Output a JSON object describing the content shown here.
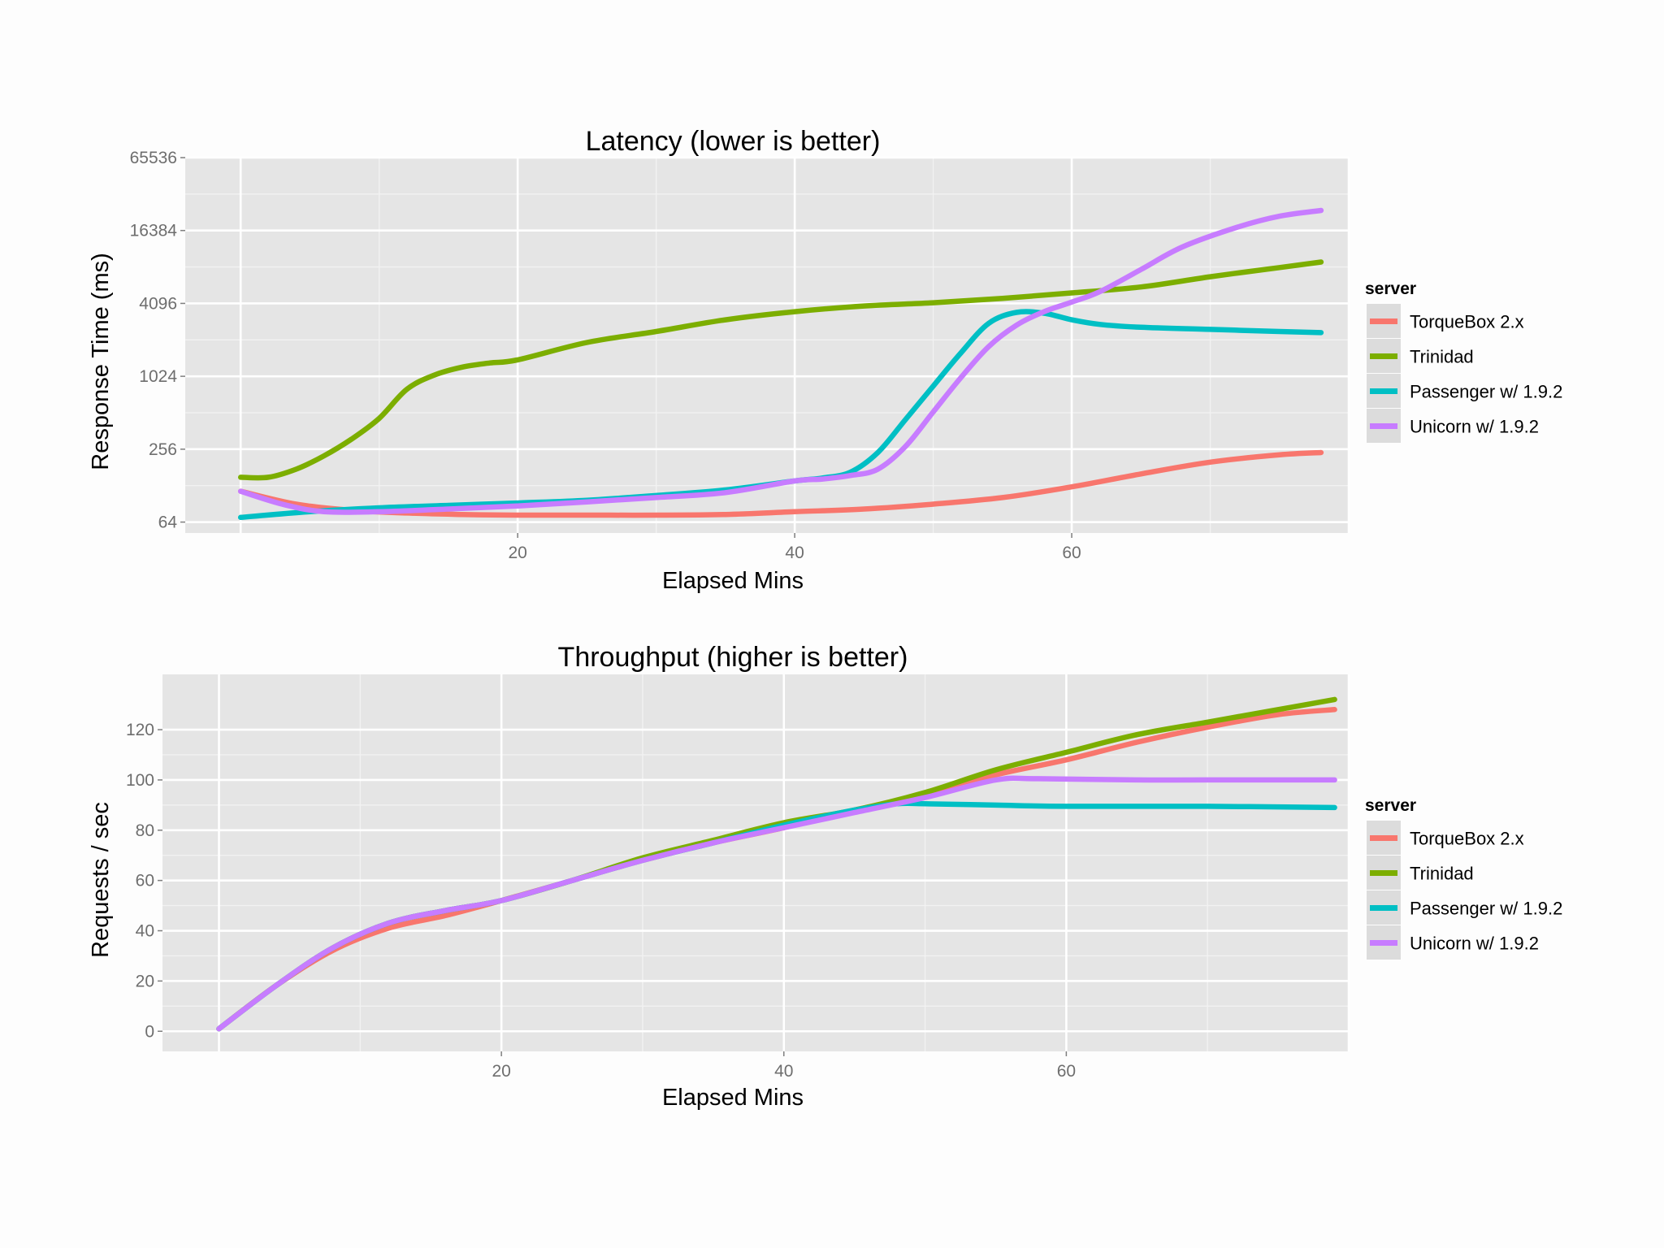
{
  "page": {
    "background": "#fdfdfd",
    "panel_background": "#e5e5e5",
    "grid_color": "#ffffff"
  },
  "chart_data": [
    {
      "type": "line",
      "title": "Latency (lower is better)",
      "xlabel": "Elapsed Mins",
      "ylabel": "Response Time (ms)",
      "y_scale": "log2",
      "xlim": [
        -4,
        80
      ],
      "ylim": [
        52,
        65536
      ],
      "x_ticks": [
        20,
        40,
        60
      ],
      "y_ticks": [
        64,
        256,
        1024,
        4096,
        16384,
        65536
      ],
      "grid": true,
      "legend": {
        "title": "server",
        "position": "right"
      },
      "series": [
        {
          "name": "TorqueBox 2.x",
          "color": "#f8766d",
          "x": [
            0,
            4,
            8,
            12,
            16,
            20,
            25,
            30,
            35,
            40,
            45,
            50,
            55,
            60,
            65,
            70,
            75,
            78
          ],
          "y": [
            115,
            90,
            80,
            76,
            74,
            73,
            73,
            73,
            74,
            78,
            82,
            90,
            102,
            125,
            160,
            200,
            230,
            240
          ]
        },
        {
          "name": "Trinidad",
          "color": "#7cae00",
          "x": [
            0,
            2,
            4,
            6,
            8,
            10,
            12,
            14,
            16,
            18,
            20,
            25,
            30,
            35,
            40,
            45,
            50,
            55,
            60,
            65,
            70,
            75,
            78
          ],
          "y": [
            150,
            150,
            175,
            225,
            310,
            460,
            800,
            1050,
            1220,
            1320,
            1400,
            1950,
            2400,
            3000,
            3500,
            3900,
            4150,
            4500,
            5000,
            5600,
            6800,
            8100,
            9000
          ]
        },
        {
          "name": "Passenger w/ 1.9.2",
          "color": "#00bfc4",
          "x": [
            0,
            5,
            10,
            15,
            20,
            25,
            30,
            35,
            40,
            42,
            44,
            46,
            48,
            50,
            52,
            54,
            56,
            58,
            60,
            62,
            65,
            70,
            75,
            78
          ],
          "y": [
            70,
            78,
            84,
            88,
            92,
            97,
            106,
            118,
            140,
            148,
            165,
            240,
            450,
            850,
            1600,
            2800,
            3450,
            3400,
            3000,
            2750,
            2600,
            2500,
            2400,
            2350
          ]
        },
        {
          "name": "Unicorn w/ 1.9.2",
          "color": "#c77cff",
          "x": [
            0,
            3,
            6,
            10,
            15,
            20,
            25,
            30,
            35,
            40,
            42,
            44,
            46,
            48,
            50,
            52,
            54,
            56,
            58,
            60,
            62,
            65,
            68,
            72,
            75,
            78
          ],
          "y": [
            115,
            90,
            78,
            78,
            82,
            87,
            94,
            102,
            112,
            140,
            145,
            155,
            175,
            270,
            520,
            1000,
            1800,
            2700,
            3500,
            4200,
            5100,
            7800,
            12000,
            17500,
            21500,
            24000
          ]
        }
      ]
    },
    {
      "type": "line",
      "title": "Throughput (higher is better)",
      "xlabel": "Elapsed Mins",
      "ylabel": "Requests / sec",
      "xlim": [
        -4,
        80
      ],
      "ylim": [
        -8,
        142
      ],
      "x_ticks": [
        20,
        40,
        60
      ],
      "y_ticks": [
        0,
        20,
        40,
        60,
        80,
        100,
        120
      ],
      "grid": true,
      "legend": {
        "title": "server",
        "position": "right"
      },
      "series": [
        {
          "name": "TorqueBox 2.x",
          "color": "#f8766d",
          "x": [
            0,
            4,
            8,
            12,
            16,
            20,
            25,
            30,
            35,
            40,
            45,
            50,
            55,
            60,
            65,
            70,
            75,
            79
          ],
          "y": [
            1,
            18,
            32,
            41,
            46,
            52,
            60,
            68,
            75,
            81,
            88,
            94,
            102,
            108,
            115,
            121,
            126,
            128
          ]
        },
        {
          "name": "Trinidad",
          "color": "#7cae00",
          "x": [
            0,
            4,
            8,
            12,
            16,
            20,
            25,
            30,
            35,
            40,
            45,
            50,
            55,
            60,
            65,
            70,
            75,
            79
          ],
          "y": [
            1,
            18,
            33,
            43,
            48,
            52,
            60,
            69,
            76,
            83,
            88,
            95,
            104,
            111,
            118,
            123,
            128,
            132
          ]
        },
        {
          "name": "Passenger w/ 1.9.2",
          "color": "#00bfc4",
          "x": [
            0,
            4,
            8,
            12,
            16,
            20,
            25,
            30,
            35,
            40,
            45,
            48,
            50,
            55,
            60,
            70,
            79
          ],
          "y": [
            1,
            18,
            33,
            43,
            48,
            52,
            60,
            68,
            75,
            82,
            88,
            90.5,
            90.5,
            90,
            89.5,
            89.5,
            89
          ]
        },
        {
          "name": "Unicorn w/ 1.9.2",
          "color": "#c77cff",
          "x": [
            0,
            4,
            8,
            12,
            16,
            20,
            25,
            30,
            35,
            40,
            45,
            50,
            55,
            58,
            65,
            70,
            79
          ],
          "y": [
            1,
            18,
            33,
            43,
            48,
            52,
            60,
            68,
            75,
            81,
            87,
            93,
            100,
            100.5,
            100,
            100,
            100
          ]
        }
      ]
    }
  ]
}
